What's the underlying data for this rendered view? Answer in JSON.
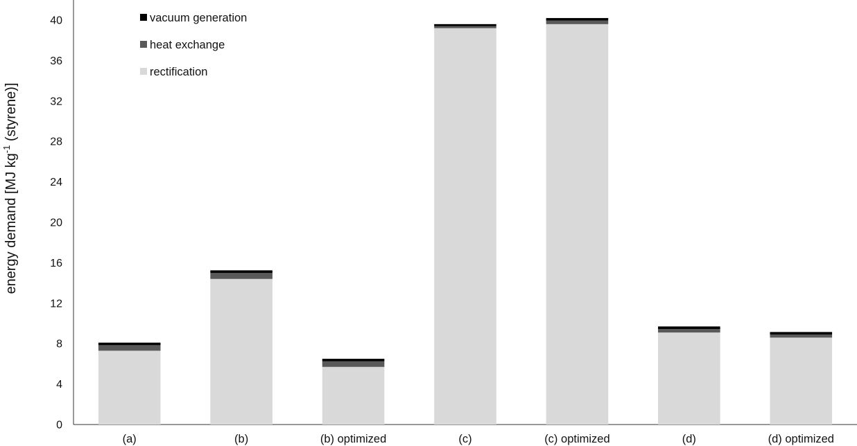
{
  "chart_data": {
    "type": "bar",
    "stacked": true,
    "categories": [
      "(a)",
      "(b)",
      "(b) optimized",
      "(c)",
      "(c) optimized",
      "(d)",
      "(d) optimized"
    ],
    "series": [
      {
        "name": "rectification",
        "color": "#d9d9d9",
        "values": [
          7.3,
          14.4,
          5.7,
          39.2,
          39.6,
          9.1,
          8.6
        ]
      },
      {
        "name": "heat exchange",
        "color": "#595959",
        "values": [
          0.55,
          0.6,
          0.55,
          0.2,
          0.35,
          0.35,
          0.3
        ]
      },
      {
        "name": "vacuum generation",
        "color": "#000000",
        "values": [
          0.25,
          0.25,
          0.25,
          0.2,
          0.25,
          0.25,
          0.25
        ]
      }
    ],
    "ylabel": {
      "prefix": "energy demand [MJ kg",
      "superscript": "-1",
      "suffix": " (styrene)]"
    },
    "ylim": [
      0,
      40
    ],
    "yticks": [
      "0",
      "4",
      "8",
      "12",
      "16",
      "20",
      "24",
      "28",
      "32",
      "36",
      "40"
    ],
    "grid": false,
    "legend": {
      "position": "top-left",
      "order": [
        "vacuum generation",
        "heat exchange",
        "rectification"
      ]
    }
  }
}
